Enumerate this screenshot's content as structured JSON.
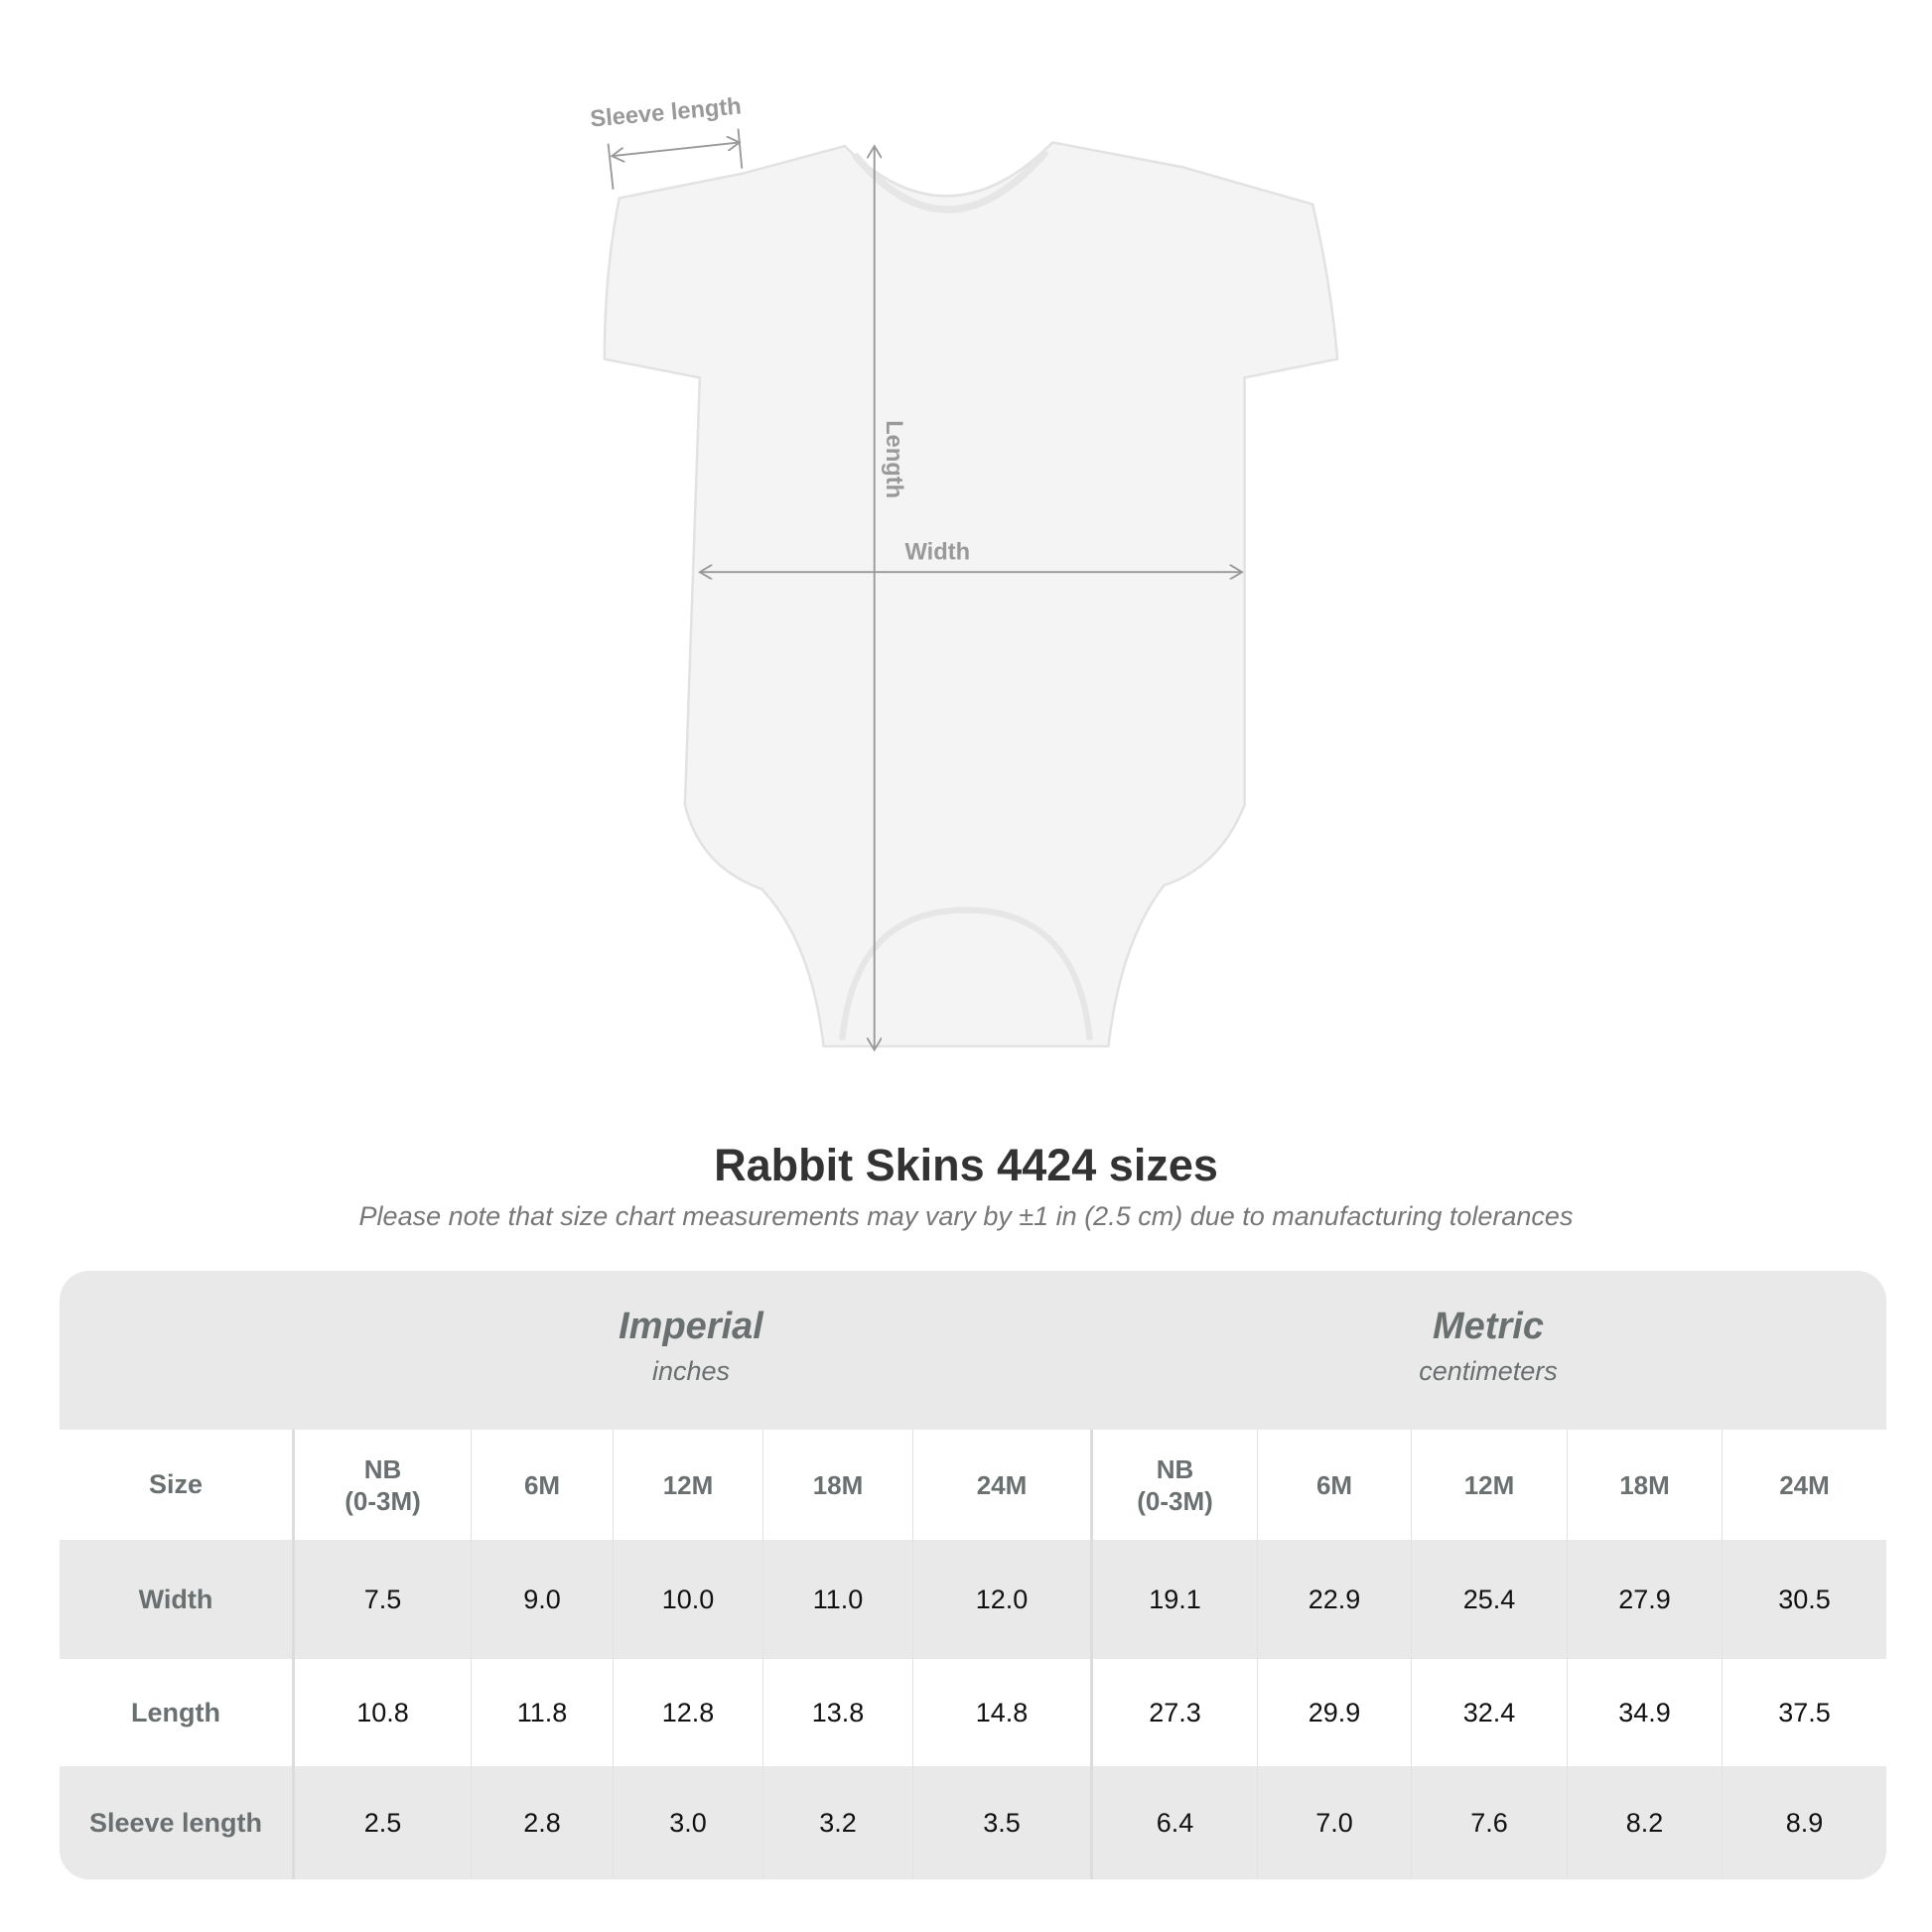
{
  "diagram": {
    "labels": {
      "sleeve": "Sleeve length",
      "length": "Length",
      "width": "Width"
    },
    "colors": {
      "garment": "#f4f4f4",
      "measure": "#999999"
    }
  },
  "title": "Rabbit Skins 4424 sizes",
  "subtitle": "Please note that size chart measurements may vary by ±1 in (2.5 cm) due to manufacturing tolerances",
  "table": {
    "groups": [
      {
        "name": "Imperial",
        "unit": "inches"
      },
      {
        "name": "Metric",
        "unit": "centimeters"
      }
    ],
    "size_label": "Size",
    "sizes": [
      "NB\n(0-3M)",
      "6M",
      "12M",
      "18M",
      "24M",
      "NB\n(0-3M)",
      "6M",
      "12M",
      "18M",
      "24M"
    ],
    "rows": [
      {
        "label": "Width",
        "values": [
          "7.5",
          "9.0",
          "10.0",
          "11.0",
          "12.0",
          "19.1",
          "22.9",
          "25.4",
          "27.9",
          "30.5"
        ]
      },
      {
        "label": "Length",
        "values": [
          "10.8",
          "11.8",
          "12.8",
          "13.8",
          "14.8",
          "27.3",
          "29.9",
          "32.4",
          "34.9",
          "37.5"
        ]
      },
      {
        "label": "Sleeve length",
        "values": [
          "2.5",
          "2.8",
          "3.0",
          "3.2",
          "3.5",
          "6.4",
          "7.0",
          "7.6",
          "8.2",
          "8.9"
        ]
      }
    ]
  }
}
